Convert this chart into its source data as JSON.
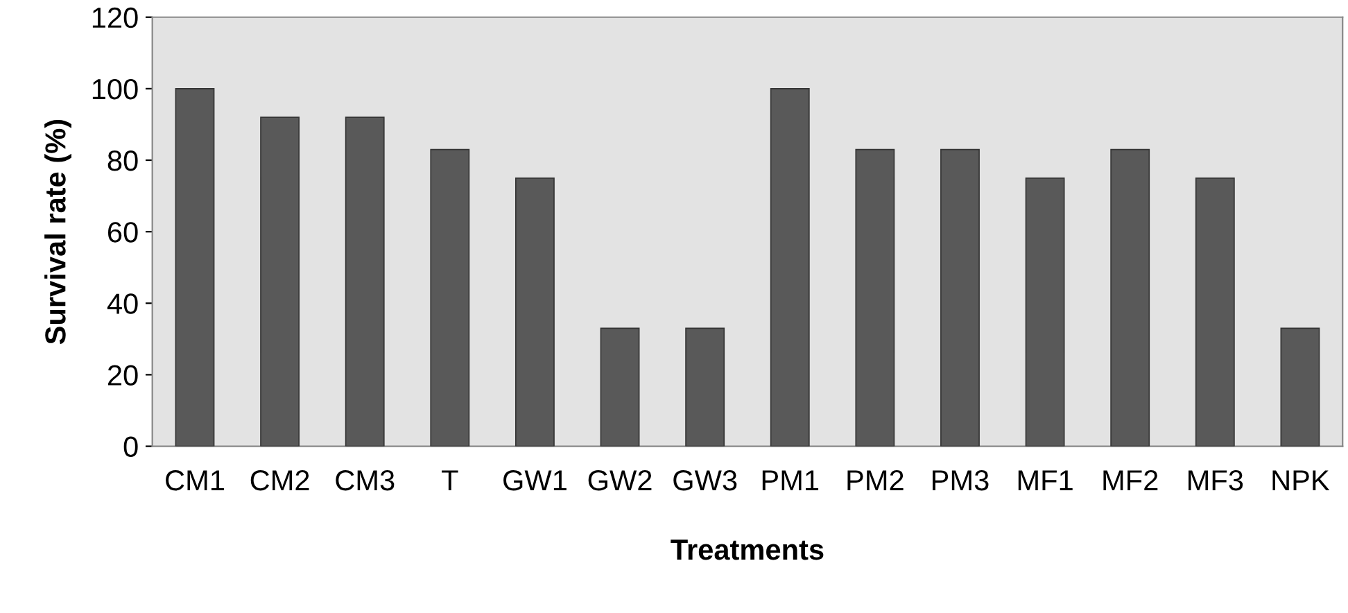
{
  "chart_data": {
    "type": "bar",
    "xlabel": "Treatments",
    "ylabel": "Survival rate (%)",
    "categories": [
      "CM1",
      "CM2",
      "CM3",
      "T",
      "GW1",
      "GW2",
      "GW3",
      "PM1",
      "PM2",
      "PM3",
      "MF1",
      "MF2",
      "MF3",
      "NPK"
    ],
    "values": [
      100,
      92,
      92,
      83,
      75,
      33,
      33,
      100,
      83,
      83,
      75,
      83,
      75,
      33
    ],
    "color": "#595959",
    "ylim": [
      0,
      120
    ],
    "yticks": [
      0,
      20,
      40,
      60,
      80,
      100,
      120
    ],
    "grid": false
  }
}
